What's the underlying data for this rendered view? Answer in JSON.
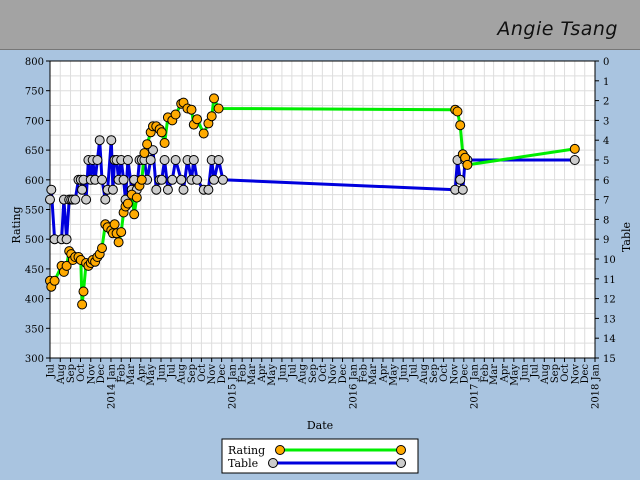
{
  "header": {
    "player_name": "Angie Tsang"
  },
  "colors": {
    "rating": "#00ee00",
    "rating_marker": "#ffaa00",
    "table": "#0000dd",
    "table_marker": "#cccccc",
    "grid": "#dddddd"
  },
  "chart_data": {
    "type": "line",
    "xlabel": "Date",
    "ylabel": "Rating",
    "y2label": "Table",
    "ylim": [
      300,
      800
    ],
    "y2lim": [
      0,
      15
    ],
    "y2_inverted": true,
    "xlim": [
      "2013-07-01",
      "2018-01-01"
    ],
    "y_ticks": [
      300,
      350,
      400,
      450,
      500,
      550,
      600,
      650,
      700,
      750,
      800
    ],
    "y2_ticks": [
      0,
      1,
      2,
      3,
      4,
      5,
      6,
      7,
      8,
      9,
      10,
      11,
      12,
      13,
      14,
      15
    ],
    "x_ticks": [
      {
        "date": "2013-07-01",
        "label": "Jul"
      },
      {
        "date": "2013-08-01",
        "label": "Aug"
      },
      {
        "date": "2013-09-01",
        "label": "Sep"
      },
      {
        "date": "2013-10-01",
        "label": "Oct"
      },
      {
        "date": "2013-11-01",
        "label": "Nov"
      },
      {
        "date": "2013-12-01",
        "label": "Dec"
      },
      {
        "date": "2014-01-01",
        "label": "2014 Jan"
      },
      {
        "date": "2014-02-01",
        "label": "Feb"
      },
      {
        "date": "2014-03-01",
        "label": "Mar"
      },
      {
        "date": "2014-04-01",
        "label": "Apr"
      },
      {
        "date": "2014-05-01",
        "label": "May"
      },
      {
        "date": "2014-06-01",
        "label": "Jun"
      },
      {
        "date": "2014-07-01",
        "label": "Jul"
      },
      {
        "date": "2014-08-01",
        "label": "Aug"
      },
      {
        "date": "2014-09-01",
        "label": "Sep"
      },
      {
        "date": "2014-10-01",
        "label": "Oct"
      },
      {
        "date": "2014-11-01",
        "label": "Nov"
      },
      {
        "date": "2014-12-01",
        "label": "Dec"
      },
      {
        "date": "2015-01-01",
        "label": "2015 Jan"
      },
      {
        "date": "2015-02-01",
        "label": "Feb"
      },
      {
        "date": "2015-03-01",
        "label": "Mar"
      },
      {
        "date": "2015-04-01",
        "label": "Apr"
      },
      {
        "date": "2015-05-01",
        "label": "May"
      },
      {
        "date": "2015-06-01",
        "label": "Jun"
      },
      {
        "date": "2015-07-01",
        "label": "Jul"
      },
      {
        "date": "2015-08-01",
        "label": "Aug"
      },
      {
        "date": "2015-09-01",
        "label": "Sep"
      },
      {
        "date": "2015-10-01",
        "label": "Oct"
      },
      {
        "date": "2015-11-01",
        "label": "Nov"
      },
      {
        "date": "2015-12-01",
        "label": "Dec"
      },
      {
        "date": "2016-01-01",
        "label": "2016 Jan"
      },
      {
        "date": "2016-02-01",
        "label": "Feb"
      },
      {
        "date": "2016-03-01",
        "label": "Mar"
      },
      {
        "date": "2016-04-01",
        "label": "Apr"
      },
      {
        "date": "2016-05-01",
        "label": "May"
      },
      {
        "date": "2016-06-01",
        "label": "Jun"
      },
      {
        "date": "2016-07-01",
        "label": "Jul"
      },
      {
        "date": "2016-08-01",
        "label": "Aug"
      },
      {
        "date": "2016-09-01",
        "label": "Sep"
      },
      {
        "date": "2016-10-01",
        "label": "Oct"
      },
      {
        "date": "2016-11-01",
        "label": "Nov"
      },
      {
        "date": "2016-12-01",
        "label": "Dec"
      },
      {
        "date": "2017-01-01",
        "label": "2017 Jan"
      },
      {
        "date": "2017-02-01",
        "label": "Feb"
      },
      {
        "date": "2017-03-01",
        "label": "Mar"
      },
      {
        "date": "2017-04-01",
        "label": "Apr"
      },
      {
        "date": "2017-05-01",
        "label": "May"
      },
      {
        "date": "2017-06-01",
        "label": "Jun"
      },
      {
        "date": "2017-07-01",
        "label": "Jul"
      },
      {
        "date": "2017-08-01",
        "label": "Aug"
      },
      {
        "date": "2017-09-01",
        "label": "Sep"
      },
      {
        "date": "2017-10-01",
        "label": "Oct"
      },
      {
        "date": "2017-11-01",
        "label": "Nov"
      },
      {
        "date": "2017-12-01",
        "label": "Dec"
      },
      {
        "date": "2018-01-01",
        "label": "2018 Jan"
      }
    ],
    "legend": {
      "placement": "bottom-center",
      "entries": [
        "Rating",
        "Table"
      ]
    },
    "grid": true,
    "series": [
      {
        "name": "Rating",
        "axis": "left",
        "points": [
          [
            "2013-07-01",
            430
          ],
          [
            "2013-07-05",
            420
          ],
          [
            "2013-07-15",
            430
          ],
          [
            "2013-08-05",
            455
          ],
          [
            "2013-08-12",
            445
          ],
          [
            "2013-08-20",
            455
          ],
          [
            "2013-08-28",
            480
          ],
          [
            "2013-09-03",
            475
          ],
          [
            "2013-09-08",
            465
          ],
          [
            "2013-09-15",
            470
          ],
          [
            "2013-09-25",
            470
          ],
          [
            "2013-10-02",
            465
          ],
          [
            "2013-10-06",
            390
          ],
          [
            "2013-10-10",
            412
          ],
          [
            "2013-10-18",
            460
          ],
          [
            "2013-10-25",
            455
          ],
          [
            "2013-11-01",
            460
          ],
          [
            "2013-11-07",
            465
          ],
          [
            "2013-11-14",
            462
          ],
          [
            "2013-11-21",
            470
          ],
          [
            "2013-11-28",
            475
          ],
          [
            "2013-12-05",
            485
          ],
          [
            "2013-12-15",
            525
          ],
          [
            "2013-12-22",
            520
          ],
          [
            "2014-01-02",
            515
          ],
          [
            "2014-01-07",
            510
          ],
          [
            "2014-01-12",
            525
          ],
          [
            "2014-01-18",
            510
          ],
          [
            "2014-01-24",
            495
          ],
          [
            "2014-02-01",
            512
          ],
          [
            "2014-02-08",
            545
          ],
          [
            "2014-02-14",
            555
          ],
          [
            "2014-02-21",
            560
          ],
          [
            "2014-03-05",
            575
          ],
          [
            "2014-03-12",
            542
          ],
          [
            "2014-03-20",
            570
          ],
          [
            "2014-03-28",
            590
          ],
          [
            "2014-04-04",
            600
          ],
          [
            "2014-04-12",
            645
          ],
          [
            "2014-04-20",
            660
          ],
          [
            "2014-05-01",
            680
          ],
          [
            "2014-05-08",
            690
          ],
          [
            "2014-05-18",
            690
          ],
          [
            "2014-05-28",
            685
          ],
          [
            "2014-06-03",
            680
          ],
          [
            "2014-06-12",
            662
          ],
          [
            "2014-06-22",
            705
          ],
          [
            "2014-07-05",
            700
          ],
          [
            "2014-07-15",
            710
          ],
          [
            "2014-08-01",
            728
          ],
          [
            "2014-08-08",
            730
          ],
          [
            "2014-08-20",
            720
          ],
          [
            "2014-09-01",
            718
          ],
          [
            "2014-09-08",
            693
          ],
          [
            "2014-09-18",
            702
          ],
          [
            "2014-10-08",
            678
          ],
          [
            "2014-10-22",
            695
          ],
          [
            "2014-11-01",
            707
          ],
          [
            "2014-11-08",
            737
          ],
          [
            "2014-11-22",
            720
          ],
          [
            "2016-11-05",
            718
          ],
          [
            "2016-11-12",
            715
          ],
          [
            "2016-11-20",
            692
          ],
          [
            "2016-11-28",
            643
          ],
          [
            "2016-12-05",
            637
          ],
          [
            "2016-12-12",
            625
          ],
          [
            "2017-11-01",
            652
          ]
        ]
      },
      {
        "name": "Table",
        "axis": "right",
        "points": [
          [
            "2013-07-01",
            7
          ],
          [
            "2013-07-05",
            6.5
          ],
          [
            "2013-07-15",
            9
          ],
          [
            "2013-08-05",
            9
          ],
          [
            "2013-08-12",
            7
          ],
          [
            "2013-08-20",
            9
          ],
          [
            "2013-08-28",
            7
          ],
          [
            "2013-09-03",
            7
          ],
          [
            "2013-09-08",
            7
          ],
          [
            "2013-09-15",
            7
          ],
          [
            "2013-09-25",
            6
          ],
          [
            "2013-10-02",
            6
          ],
          [
            "2013-10-06",
            6.5
          ],
          [
            "2013-10-10",
            6
          ],
          [
            "2013-10-18",
            7
          ],
          [
            "2013-10-25",
            5
          ],
          [
            "2013-11-01",
            6
          ],
          [
            "2013-11-07",
            5
          ],
          [
            "2013-11-14",
            6
          ],
          [
            "2013-11-21",
            5
          ],
          [
            "2013-11-28",
            4
          ],
          [
            "2013-12-05",
            6
          ],
          [
            "2013-12-15",
            7
          ],
          [
            "2013-12-22",
            6.5
          ],
          [
            "2014-01-02",
            4
          ],
          [
            "2014-01-07",
            6.5
          ],
          [
            "2014-01-12",
            5
          ],
          [
            "2014-01-18",
            5
          ],
          [
            "2014-01-24",
            6
          ],
          [
            "2014-02-01",
            5
          ],
          [
            "2014-02-08",
            6
          ],
          [
            "2014-02-14",
            7
          ],
          [
            "2014-02-21",
            5
          ],
          [
            "2014-03-05",
            6.5
          ],
          [
            "2014-03-12",
            6
          ],
          [
            "2014-03-20",
            6.5
          ],
          [
            "2014-03-28",
            5
          ],
          [
            "2014-04-04",
            5
          ],
          [
            "2014-04-12",
            5
          ],
          [
            "2014-04-20",
            6
          ],
          [
            "2014-05-01",
            5
          ],
          [
            "2014-05-08",
            4.5
          ],
          [
            "2014-05-18",
            6.5
          ],
          [
            "2014-05-28",
            6
          ],
          [
            "2014-06-03",
            6
          ],
          [
            "2014-06-12",
            5
          ],
          [
            "2014-06-22",
            6.5
          ],
          [
            "2014-07-05",
            6
          ],
          [
            "2014-07-15",
            5
          ],
          [
            "2014-08-01",
            6
          ],
          [
            "2014-08-08",
            6.5
          ],
          [
            "2014-08-20",
            5
          ],
          [
            "2014-09-01",
            6
          ],
          [
            "2014-09-08",
            5
          ],
          [
            "2014-09-18",
            6
          ],
          [
            "2014-10-08",
            6.5
          ],
          [
            "2014-10-22",
            6.5
          ],
          [
            "2014-11-01",
            5
          ],
          [
            "2014-11-08",
            6
          ],
          [
            "2014-11-22",
            5
          ],
          [
            "2014-12-05",
            6
          ],
          [
            "2016-11-05",
            6.5
          ],
          [
            "2016-11-12",
            5
          ],
          [
            "2016-11-20",
            6
          ],
          [
            "2016-11-28",
            6.5
          ],
          [
            "2016-12-05",
            5
          ],
          [
            "2016-12-12",
            5
          ],
          [
            "2017-11-01",
            5
          ]
        ]
      }
    ]
  }
}
